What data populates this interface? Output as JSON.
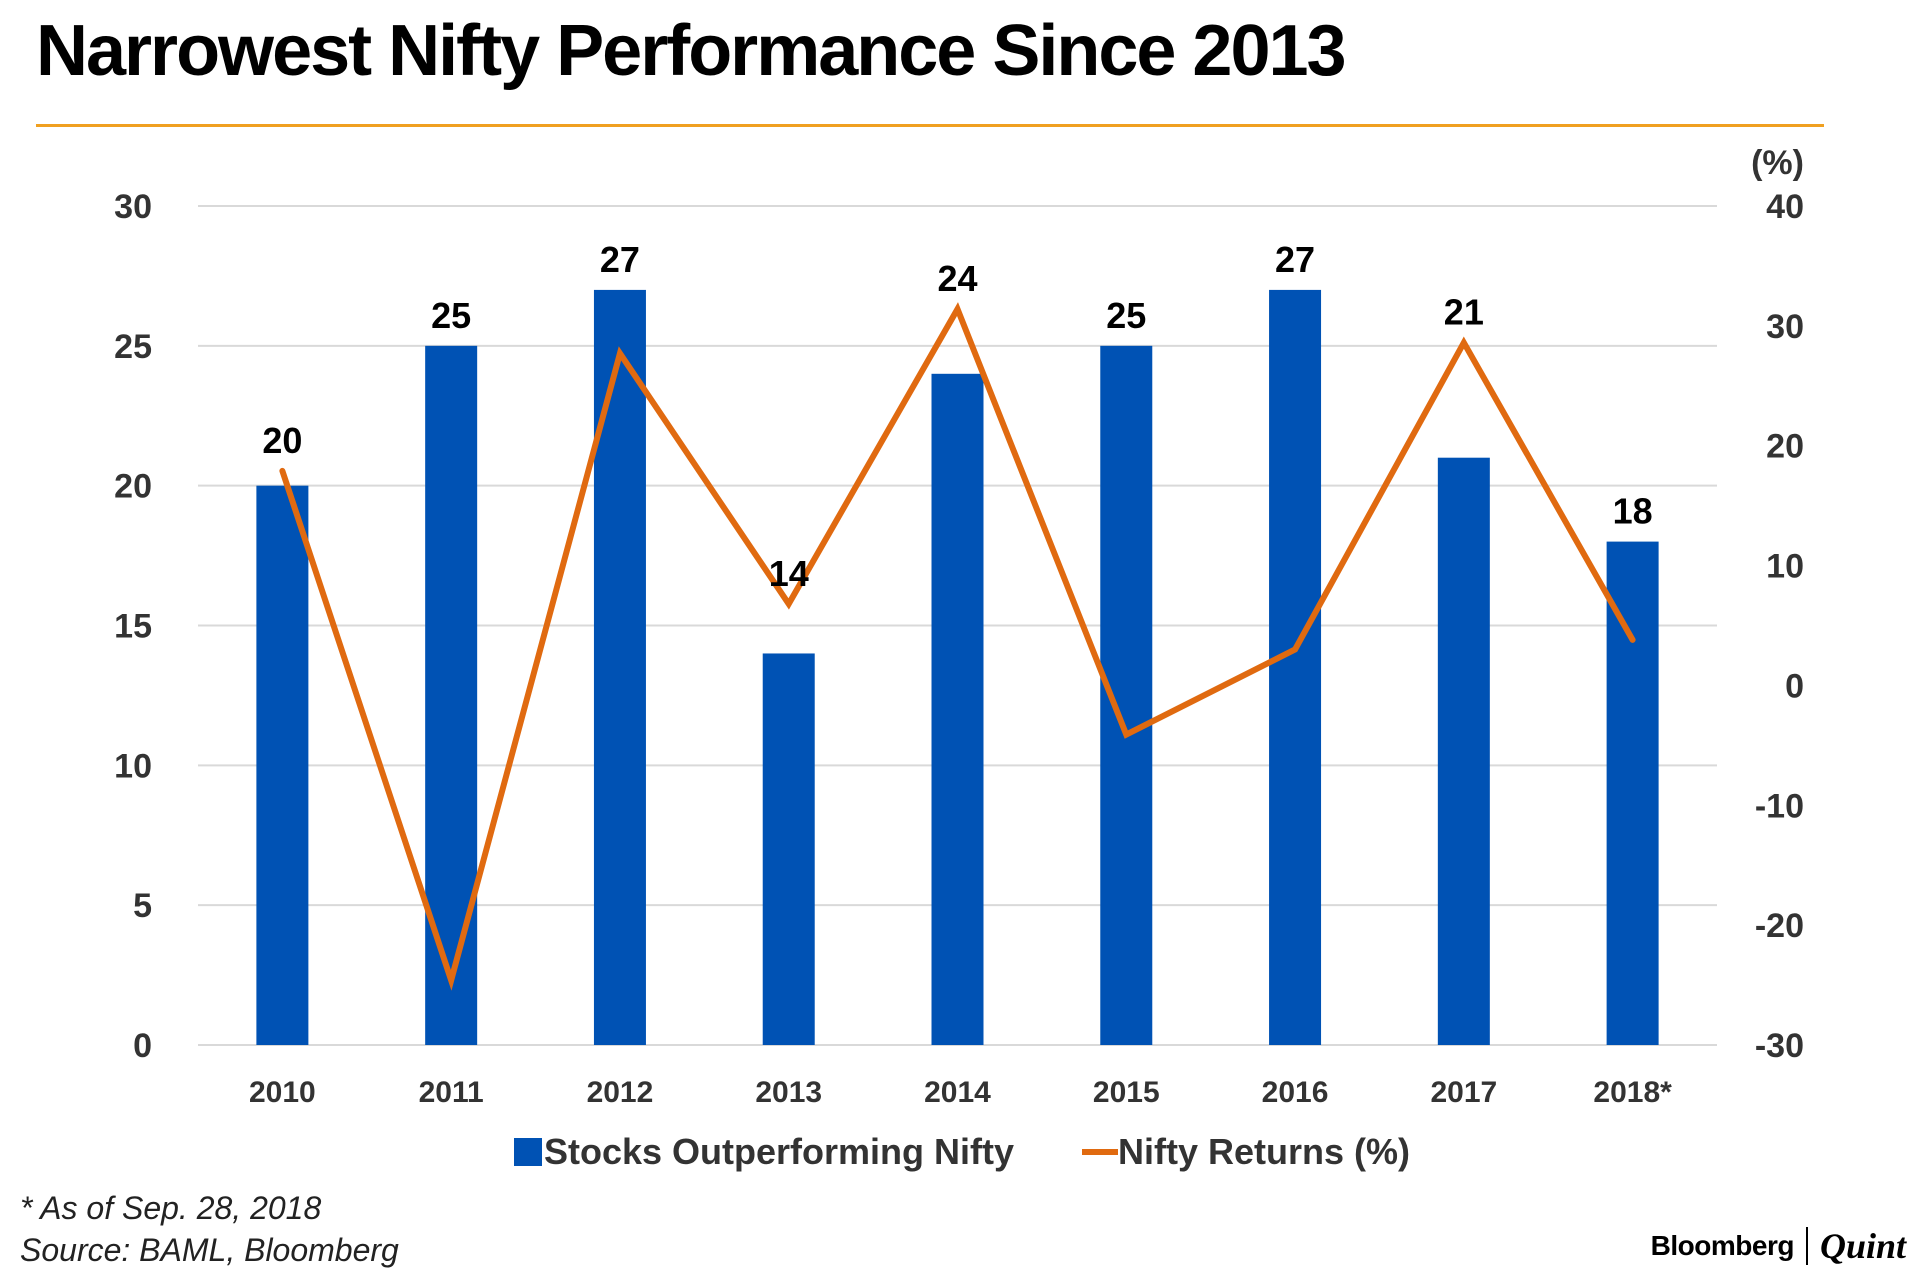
{
  "title": "Narrowest Nifty Performance Since 2013",
  "colors": {
    "accent_rule": "#f0a020",
    "bar": "#0052b4",
    "line": "#e06a10",
    "grid": "#d9d9d9",
    "axis_text": "#333333"
  },
  "footnotes": {
    "line1": "* As of Sep. 28, 2018",
    "line2": "Source: BAML, Bloomberg"
  },
  "brand": {
    "part1": "Bloomberg",
    "part2": "Quint"
  },
  "chart_data": {
    "type": "bar",
    "title": "Narrowest Nifty Performance Since 2013",
    "categories": [
      "2010",
      "2011",
      "2012",
      "2013",
      "2014",
      "2015",
      "2016",
      "2017",
      "2018*"
    ],
    "series": [
      {
        "name": "Stocks Outperforming Nifty",
        "type": "bar",
        "axis": "left",
        "values": [
          20,
          25,
          27,
          14,
          24,
          25,
          27,
          21,
          18
        ],
        "labels": [
          "20",
          "25",
          "27",
          "14",
          "24",
          "25",
          "27",
          "21",
          "18"
        ]
      },
      {
        "name": "Nifty Returns (%)",
        "type": "line",
        "axis": "right",
        "values": [
          17.9,
          -24.6,
          27.7,
          6.8,
          31.4,
          -4.1,
          3.0,
          28.6,
          3.8
        ]
      }
    ],
    "y_left": {
      "min": 0,
      "max": 30,
      "ticks": [
        "0",
        "5",
        "10",
        "15",
        "20",
        "25",
        "30"
      ]
    },
    "y_right": {
      "min": -30,
      "max": 40,
      "ticks": [
        "-30",
        "-20",
        "-10",
        "0",
        "10",
        "20",
        "30",
        "40"
      ],
      "unit_label": "(%)"
    },
    "grid": true,
    "legend_position": "bottom"
  }
}
